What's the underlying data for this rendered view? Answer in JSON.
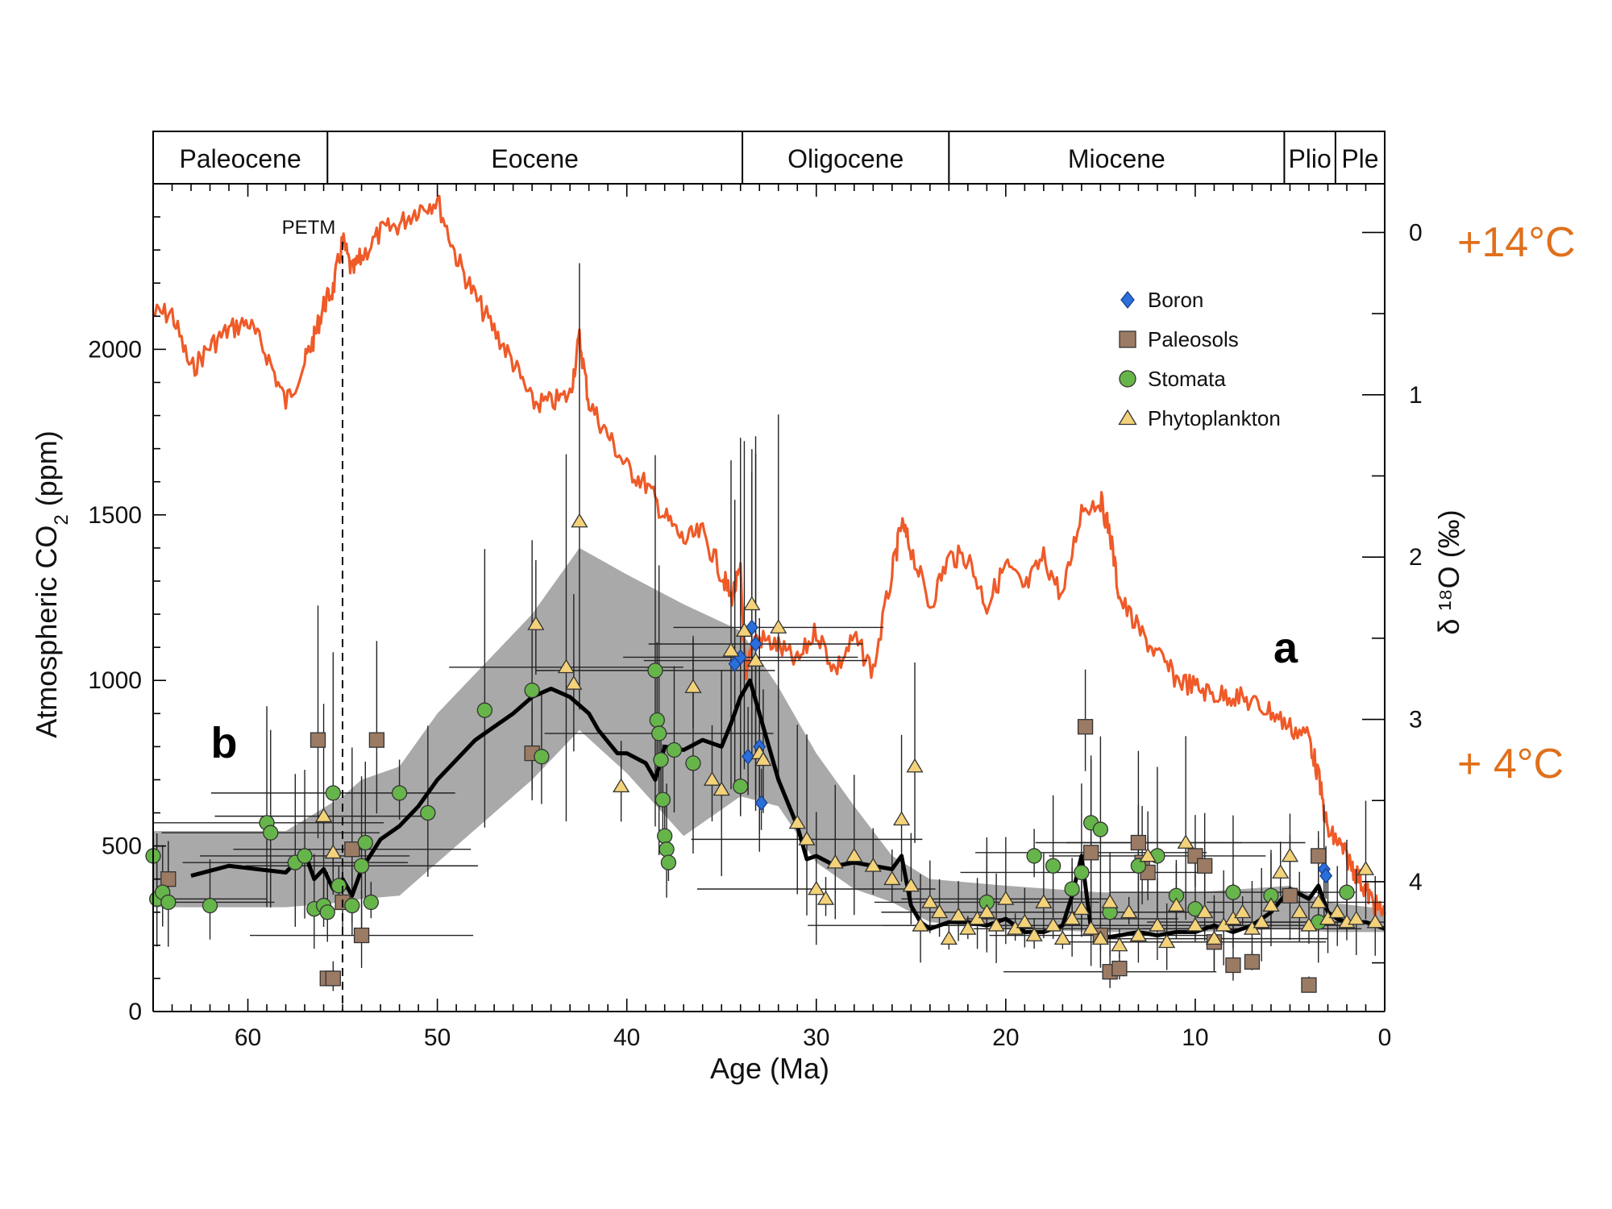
{
  "chart_data": {
    "type": "scatter",
    "xlabel": "Age (Ma)",
    "ylabel": "Atmospheric CO",
    "ylabel_subscript": "2",
    "ylabel_unit": " (ppm)",
    "y2label": "δ ¹⁸O (‰)",
    "xlim": [
      65,
      0
    ],
    "ylim": [
      0,
      2500
    ],
    "y2lim": [
      -0.3,
      4.8
    ],
    "x_ticks": [
      "60",
      "50",
      "40",
      "30",
      "20",
      "10",
      "0"
    ],
    "x_tick_values": [
      60,
      50,
      40,
      30,
      20,
      10,
      0
    ],
    "y_ticks": [
      "0",
      "500",
      "1000",
      "1500",
      "2000"
    ],
    "y_tick_values": [
      0,
      500,
      1000,
      1500,
      2000
    ],
    "y2_ticks": [
      "0",
      "1",
      "2",
      "3",
      "4"
    ],
    "y2_tick_values": [
      0,
      1,
      2,
      3,
      4
    ],
    "epochs": [
      {
        "name": "Paleocene",
        "start": 65,
        "end": 55.8
      },
      {
        "name": "Eocene",
        "start": 55.8,
        "end": 33.9
      },
      {
        "name": "Oligocene",
        "start": 33.9,
        "end": 23.0
      },
      {
        "name": "Miocene",
        "start": 23.0,
        "end": 5.3
      },
      {
        "name": "Plio",
        "start": 5.3,
        "end": 2.6
      },
      {
        "name": "Ple",
        "start": 2.6,
        "end": 0
      }
    ],
    "annotations": {
      "petm": "PETM",
      "petm_age": 55.5,
      "label_a": "a",
      "label_b": "b",
      "temp_high": "+14°C",
      "temp_low": "+ 4°C"
    },
    "legend": {
      "position": "upper-right",
      "entries": [
        {
          "name": "Boron",
          "marker": "diamond",
          "color": "#2a6fdb"
        },
        {
          "name": "Paleosols",
          "marker": "square",
          "color": "#9b7b64"
        },
        {
          "name": "Stomata",
          "marker": "circle",
          "color": "#66b54a"
        },
        {
          "name": "Phytoplankton",
          "marker": "triangle",
          "color": "#f3d27a"
        }
      ]
    },
    "series": [
      {
        "name": "δ18O",
        "axis": "right",
        "color": "#ef5a28",
        "x": [
          65,
          64,
          63,
          62,
          61,
          60,
          59,
          58,
          57,
          56.5,
          56,
          55.5,
          55,
          54.5,
          54,
          53,
          52,
          51,
          50,
          49,
          48,
          47,
          46,
          45,
          44,
          43,
          42.5,
          42,
          41,
          40,
          39,
          38,
          37,
          36,
          35,
          34.5,
          34,
          33.7,
          33.5,
          33,
          32,
          31,
          30,
          29,
          28,
          27,
          26,
          25.5,
          25,
          24,
          23,
          22,
          21,
          20,
          19,
          18,
          17,
          16,
          15,
          14.5,
          14,
          13,
          12,
          11,
          10,
          9,
          8,
          7,
          6,
          5,
          4,
          3.5,
          3,
          2.5,
          2,
          1.5,
          1,
          0.5,
          0
        ],
        "values": [
          0.5,
          0.5,
          0.85,
          0.7,
          0.6,
          0.55,
          0.75,
          1.05,
          0.8,
          0.65,
          0.45,
          0.35,
          0.05,
          0.25,
          0.15,
          0.0,
          -0.05,
          -0.15,
          -0.2,
          0.15,
          0.4,
          0.6,
          0.8,
          1.05,
          1.05,
          1.0,
          0.65,
          1.05,
          1.25,
          1.45,
          1.55,
          1.75,
          1.9,
          1.85,
          2.1,
          2.25,
          2.1,
          2.8,
          2.55,
          2.5,
          2.55,
          2.65,
          2.45,
          2.7,
          2.5,
          2.7,
          2.1,
          1.8,
          1.95,
          2.3,
          2.0,
          2.0,
          2.3,
          2.05,
          2.2,
          2.0,
          2.25,
          1.7,
          1.65,
          1.85,
          2.25,
          2.45,
          2.6,
          2.75,
          2.8,
          2.85,
          2.85,
          2.9,
          2.95,
          3.05,
          3.1,
          3.35,
          3.7,
          3.75,
          3.85,
          3.95,
          4.05,
          4.15,
          4.2
        ]
      },
      {
        "name": "CO2 LOESS fit",
        "color": "#000000",
        "x": [
          63,
          61,
          58,
          57,
          56.5,
          56,
          55.5,
          55,
          54.5,
          54,
          53,
          52,
          51,
          50,
          48,
          47,
          46,
          45,
          44,
          43,
          42,
          41.5,
          40.5,
          40,
          39,
          38.5,
          38,
          37,
          36,
          35,
          34.5,
          34,
          33.5,
          33,
          32,
          31,
          30.5,
          30,
          29,
          28,
          27,
          26,
          25.5,
          25,
          24.5,
          24,
          23,
          22,
          21,
          20,
          19,
          18,
          17,
          16.5,
          16,
          15.5,
          15,
          14,
          13,
          12,
          11,
          10,
          9,
          8,
          7,
          6,
          5,
          4,
          3.5,
          3,
          2.5,
          2,
          1,
          0.5,
          0
        ],
        "values": [
          410,
          440,
          420,
          480,
          400,
          430,
          370,
          400,
          350,
          430,
          520,
          560,
          620,
          700,
          820,
          860,
          900,
          950,
          975,
          950,
          900,
          850,
          780,
          780,
          750,
          700,
          800,
          790,
          820,
          800,
          870,
          950,
          1000,
          900,
          700,
          560,
          460,
          470,
          440,
          450,
          440,
          430,
          470,
          320,
          270,
          250,
          270,
          270,
          260,
          280,
          240,
          240,
          260,
          350,
          470,
          250,
          220,
          230,
          240,
          230,
          240,
          240,
          260,
          240,
          260,
          300,
          370,
          340,
          380,
          300,
          280,
          270,
          270,
          260,
          250
        ]
      },
      {
        "name": "uncertainty envelope",
        "fill": "#a9a9a9",
        "x": [
          65,
          58,
          55,
          54,
          52,
          50,
          45,
          42.5,
          40,
          37,
          34,
          32,
          30,
          28,
          26,
          24,
          20,
          15,
          10,
          5,
          3,
          0
        ],
        "upper": [
          545,
          545,
          650,
          700,
          740,
          900,
          1200,
          1400,
          1320,
          1230,
          1150,
          980,
          780,
          620,
          470,
          400,
          380,
          360,
          360,
          380,
          330,
          310
        ],
        "lower": [
          315,
          315,
          330,
          340,
          350,
          450,
          700,
          850,
          720,
          530,
          650,
          620,
          450,
          370,
          330,
          270,
          250,
          240,
          240,
          250,
          240,
          240
        ]
      },
      {
        "name": "Boron",
        "marker": "diamond",
        "color": "#2a6fdb",
        "x": [
          34.3,
          34,
          33.6,
          33.4,
          33.2,
          33.0,
          32.9,
          3.2,
          3.1
        ],
        "values": [
          1050,
          1070,
          770,
          1160,
          1110,
          800,
          630,
          430,
          410
        ]
      },
      {
        "name": "Paleosols",
        "marker": "square",
        "color": "#9b7b64",
        "x": [
          64.2,
          56.3,
          55.8,
          55.5,
          55,
          54.5,
          54,
          53.2,
          45,
          15.8,
          15.5,
          15,
          14.5,
          14,
          13,
          12.8,
          12.5,
          10,
          9.5,
          9,
          8,
          7,
          5,
          4,
          3.5
        ],
        "values": [
          400,
          820,
          100,
          100,
          330,
          490,
          230,
          820,
          780,
          860,
          480,
          230,
          120,
          130,
          510,
          450,
          420,
          470,
          440,
          210,
          140,
          150,
          350,
          80,
          470
        ]
      },
      {
        "name": "Stomata",
        "marker": "circle",
        "color": "#66b54a",
        "x": [
          65,
          64.8,
          64.5,
          64.2,
          62,
          59,
          58.8,
          57.5,
          57,
          56.5,
          56,
          55.8,
          55.5,
          55.2,
          54.5,
          54,
          53.8,
          53.5,
          52,
          50.5,
          47.5,
          45,
          44.5,
          38.5,
          38.4,
          38.3,
          38.2,
          38.1,
          38.0,
          37.9,
          37.8,
          37.5,
          36.5,
          34,
          21,
          18.5,
          17.5,
          16.5,
          16,
          15.5,
          15,
          14.5,
          13,
          12,
          11,
          10,
          8,
          6,
          3.5,
          2
        ],
        "values": [
          470,
          340,
          360,
          330,
          320,
          570,
          540,
          450,
          470,
          310,
          320,
          300,
          660,
          380,
          320,
          440,
          510,
          330,
          660,
          600,
          910,
          970,
          770,
          1030,
          880,
          840,
          760,
          640,
          530,
          490,
          450,
          790,
          750,
          680,
          330,
          470,
          440,
          370,
          420,
          570,
          550,
          300,
          440,
          470,
          350,
          310,
          360,
          350,
          270,
          360
        ]
      },
      {
        "name": "Phytoplankton",
        "marker": "triangle",
        "color": "#f3d27a",
        "x": [
          56,
          55.5,
          44.8,
          43.2,
          42.8,
          42.5,
          40.3,
          36.5,
          35.5,
          35,
          34.5,
          33.8,
          33.4,
          33.2,
          33,
          32.8,
          32,
          31,
          30.5,
          30,
          29.5,
          29,
          28,
          27,
          26,
          25.5,
          25,
          24.8,
          24.5,
          24,
          23.5,
          23,
          22.5,
          22,
          21.5,
          21,
          20.5,
          20,
          19.5,
          19,
          18.5,
          18,
          17.5,
          17,
          16.5,
          16,
          15.5,
          15,
          14.5,
          14,
          13.5,
          13,
          12.5,
          12,
          11.5,
          11,
          10.5,
          10,
          9.5,
          9,
          8.5,
          8,
          7.5,
          7,
          6.5,
          6,
          5.5,
          5,
          4.5,
          4,
          3.5,
          3,
          2.5,
          2,
          1.5,
          1,
          0.5
        ],
        "values": [
          590,
          480,
          1170,
          1040,
          990,
          1480,
          680,
          980,
          700,
          670,
          1090,
          1150,
          1230,
          1060,
          780,
          760,
          1160,
          570,
          520,
          370,
          340,
          450,
          470,
          440,
          400,
          580,
          380,
          740,
          260,
          330,
          300,
          220,
          290,
          250,
          280,
          300,
          260,
          340,
          250,
          270,
          230,
          330,
          260,
          220,
          280,
          310,
          250,
          220,
          330,
          200,
          300,
          230,
          470,
          260,
          210,
          320,
          510,
          260,
          300,
          220,
          260,
          280,
          300,
          250,
          270,
          320,
          420,
          470,
          300,
          260,
          330,
          280,
          300,
          270,
          280,
          430,
          270
        ]
      }
    ]
  }
}
